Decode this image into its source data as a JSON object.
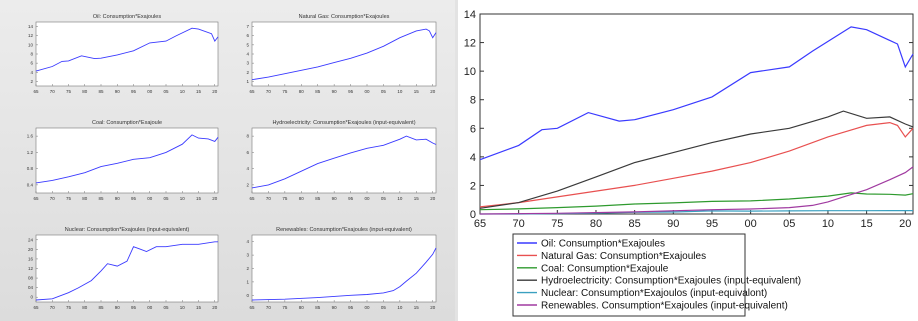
{
  "chart_data": [
    {
      "type": "line",
      "title": "Oil: Consumption*Exajoules",
      "yticks": [
        "2",
        "4",
        "6",
        "8",
        "10",
        "12",
        "14"
      ],
      "xticks": [
        "65",
        "70",
        "75",
        "80",
        "85",
        "90",
        "95",
        "00",
        "05",
        "10",
        "15",
        "20"
      ],
      "ylim": [
        1,
        14
      ],
      "color": "#3a3aff",
      "x": [
        1965,
        1970,
        1973,
        1975,
        1979,
        1983,
        1985,
        1990,
        1995,
        2000,
        2005,
        2008,
        2013,
        2015,
        2019,
        2020,
        2021
      ],
      "y": [
        3.8,
        4.8,
        5.9,
        6.0,
        7.1,
        6.5,
        6.6,
        7.3,
        8.2,
        9.9,
        10.3,
        11.4,
        13.1,
        12.9,
        11.9,
        10.3,
        11.2
      ]
    },
    {
      "type": "line",
      "title": "Natural Gas: Consumption*Exajoules",
      "yticks": [
        "1",
        "2",
        "3",
        "4",
        "5",
        "6",
        "7"
      ],
      "xticks": [
        "65",
        "70",
        "75",
        "80",
        "85",
        "90",
        "95",
        "00",
        "05",
        "10",
        "15",
        "20"
      ],
      "ylim": [
        0,
        7
      ],
      "color": "#3a3aff",
      "x": [
        1965,
        1970,
        1975,
        1980,
        1985,
        1990,
        1995,
        2000,
        2005,
        2010,
        2015,
        2018,
        2019,
        2020,
        2021
      ],
      "y": [
        0.5,
        0.8,
        1.2,
        1.6,
        2.0,
        2.5,
        3.0,
        3.6,
        4.4,
        5.4,
        6.2,
        6.4,
        6.2,
        5.4,
        6.0
      ]
    },
    {
      "type": "line",
      "title": "Coal: Consumption*Exajoule",
      "yticks": [
        "0.4",
        "0.8",
        "1.2",
        "1.6"
      ],
      "xticks": [
        "65",
        "70",
        "75",
        "80",
        "85",
        "90",
        "95",
        "00",
        "05",
        "10",
        "15",
        "20"
      ],
      "ylim": [
        0.1,
        1.6
      ],
      "color": "#3a3aff",
      "x": [
        1965,
        1970,
        1975,
        1980,
        1985,
        1990,
        1995,
        2000,
        2005,
        2010,
        2013,
        2015,
        2018,
        2020,
        2021
      ],
      "y": [
        0.3,
        0.36,
        0.45,
        0.55,
        0.7,
        0.78,
        0.88,
        0.92,
        1.05,
        1.25,
        1.48,
        1.4,
        1.38,
        1.32,
        1.42
      ]
    },
    {
      "type": "line",
      "title": "Hydroelectricity: Consumption*Exajoules (input-equivalent)",
      "yticks": [
        "2",
        "4",
        "6",
        "8"
      ],
      "xticks": [
        "65",
        "70",
        "75",
        "80",
        "85",
        "90",
        "95",
        "00",
        "05",
        "10",
        "15",
        "20"
      ],
      "ylim": [
        0,
        8
      ],
      "color": "#3a3aff",
      "x": [
        1965,
        1970,
        1975,
        1980,
        1985,
        1990,
        1995,
        2000,
        2005,
        2010,
        2012,
        2015,
        2018,
        2020,
        2021
      ],
      "y": [
        0.4,
        0.8,
        1.6,
        2.6,
        3.6,
        4.3,
        5.0,
        5.6,
        6.0,
        6.8,
        7.2,
        6.7,
        6.8,
        6.3,
        6.1
      ]
    },
    {
      "type": "line",
      "title": "Nuclear: Consumption*Exajoules (input-equivalent)",
      "yticks": [
        "0",
        "04",
        "08",
        "12",
        "16",
        "20",
        "24"
      ],
      "xticks": [
        "65",
        "70",
        "75",
        "80",
        "85",
        "90",
        "95",
        "00",
        "05",
        "10",
        "15",
        "20"
      ],
      "ylim": [
        0,
        0.26
      ],
      "color": "#3a3aff",
      "x": [
        1965,
        1970,
        1975,
        1978,
        1982,
        1985,
        1987,
        1990,
        1993,
        1995,
        1997,
        1999,
        2002,
        2005,
        2010,
        2015,
        2020,
        2021
      ],
      "y": [
        0.0,
        0.005,
        0.03,
        0.05,
        0.08,
        0.12,
        0.15,
        0.14,
        0.16,
        0.22,
        0.21,
        0.2,
        0.22,
        0.22,
        0.23,
        0.23,
        0.24,
        0.24
      ]
    },
    {
      "type": "line",
      "title": "Renewables: Consumption*Exajoules (input-equivalent)",
      "yticks": [
        "0",
        "1",
        "2",
        "3",
        "4"
      ],
      "xticks": [
        "65",
        "70",
        "75",
        "80",
        "85",
        "90",
        "95",
        "00",
        "05",
        "10",
        "15",
        "20"
      ],
      "ylim": [
        0,
        4
      ],
      "color": "#3a3aff",
      "x": [
        1965,
        1975,
        1985,
        1995,
        2000,
        2005,
        2008,
        2010,
        2012,
        2015,
        2018,
        2020,
        2021
      ],
      "y": [
        0.0,
        0.05,
        0.15,
        0.3,
        0.35,
        0.45,
        0.6,
        0.85,
        1.2,
        1.7,
        2.4,
        2.9,
        3.3
      ]
    },
    {
      "type": "line",
      "title": "",
      "xlim": [
        1965,
        2021
      ],
      "ylim": [
        0,
        14
      ],
      "yticks": [
        "0",
        "2",
        "4",
        "6",
        "8",
        "10",
        "12",
        "14"
      ],
      "xticks": [
        "65",
        "70",
        "75",
        "80",
        "85",
        "90",
        "95",
        "00",
        "05",
        "10",
        "15",
        "20"
      ],
      "legend_position": "bottom",
      "series": [
        {
          "name": "Oil: Consumption*Exajoules",
          "color": "#3a3aff",
          "x": [
            1965,
            1970,
            1973,
            1975,
            1979,
            1983,
            1985,
            1990,
            1995,
            2000,
            2005,
            2008,
            2013,
            2015,
            2019,
            2020,
            2021
          ],
          "y": [
            3.8,
            4.8,
            5.9,
            6.0,
            7.1,
            6.5,
            6.6,
            7.3,
            8.2,
            9.9,
            10.3,
            11.4,
            13.1,
            12.9,
            11.9,
            10.3,
            11.2
          ]
        },
        {
          "name": "Natural Gas: Consumption*Exajoules",
          "color": "#e85050",
          "x": [
            1965,
            1970,
            1975,
            1980,
            1985,
            1990,
            1995,
            2000,
            2005,
            2010,
            2015,
            2018,
            2019,
            2020,
            2021
          ],
          "y": [
            0.5,
            0.8,
            1.2,
            1.6,
            2.0,
            2.5,
            3.0,
            3.6,
            4.4,
            5.4,
            6.2,
            6.4,
            6.2,
            5.4,
            6.0
          ]
        },
        {
          "name": "Coal: Consumption*Exajoule",
          "color": "#2e9a2e",
          "x": [
            1965,
            1970,
            1975,
            1980,
            1985,
            1990,
            1995,
            2000,
            2005,
            2010,
            2013,
            2015,
            2018,
            2020,
            2021
          ],
          "y": [
            0.3,
            0.36,
            0.45,
            0.55,
            0.7,
            0.78,
            0.88,
            0.92,
            1.05,
            1.25,
            1.48,
            1.4,
            1.38,
            1.32,
            1.42
          ]
        },
        {
          "name": "Hydroelectricity: Consumption*Exajoules (input-equivalent)",
          "color": "#3a3a3a",
          "x": [
            1965,
            1970,
            1975,
            1980,
            1985,
            1990,
            1995,
            2000,
            2005,
            2010,
            2012,
            2015,
            2018,
            2020,
            2021
          ],
          "y": [
            0.4,
            0.8,
            1.6,
            2.6,
            3.6,
            4.3,
            5.0,
            5.6,
            6.0,
            6.8,
            7.2,
            6.7,
            6.8,
            6.3,
            6.1
          ]
        },
        {
          "name": "Nuclear: Consumption*Exajoulos (input-equivalont)",
          "color": "#3aa0c0",
          "x": [
            1965,
            1970,
            1975,
            1980,
            1985,
            1990,
            1995,
            2000,
            2005,
            2010,
            2015,
            2020,
            2021
          ],
          "y": [
            0.0,
            0.0,
            0.03,
            0.06,
            0.12,
            0.14,
            0.22,
            0.2,
            0.22,
            0.23,
            0.23,
            0.24,
            0.24
          ]
        },
        {
          "name": "Renewables. Consumption*Exajoules (input-equivalent)",
          "color": "#a03aa0",
          "x": [
            1965,
            1975,
            1985,
            1995,
            2000,
            2005,
            2008,
            2010,
            2012,
            2015,
            2018,
            2020,
            2021
          ],
          "y": [
            0.0,
            0.05,
            0.15,
            0.3,
            0.35,
            0.45,
            0.6,
            0.85,
            1.2,
            1.7,
            2.4,
            2.9,
            3.3
          ]
        }
      ]
    }
  ]
}
